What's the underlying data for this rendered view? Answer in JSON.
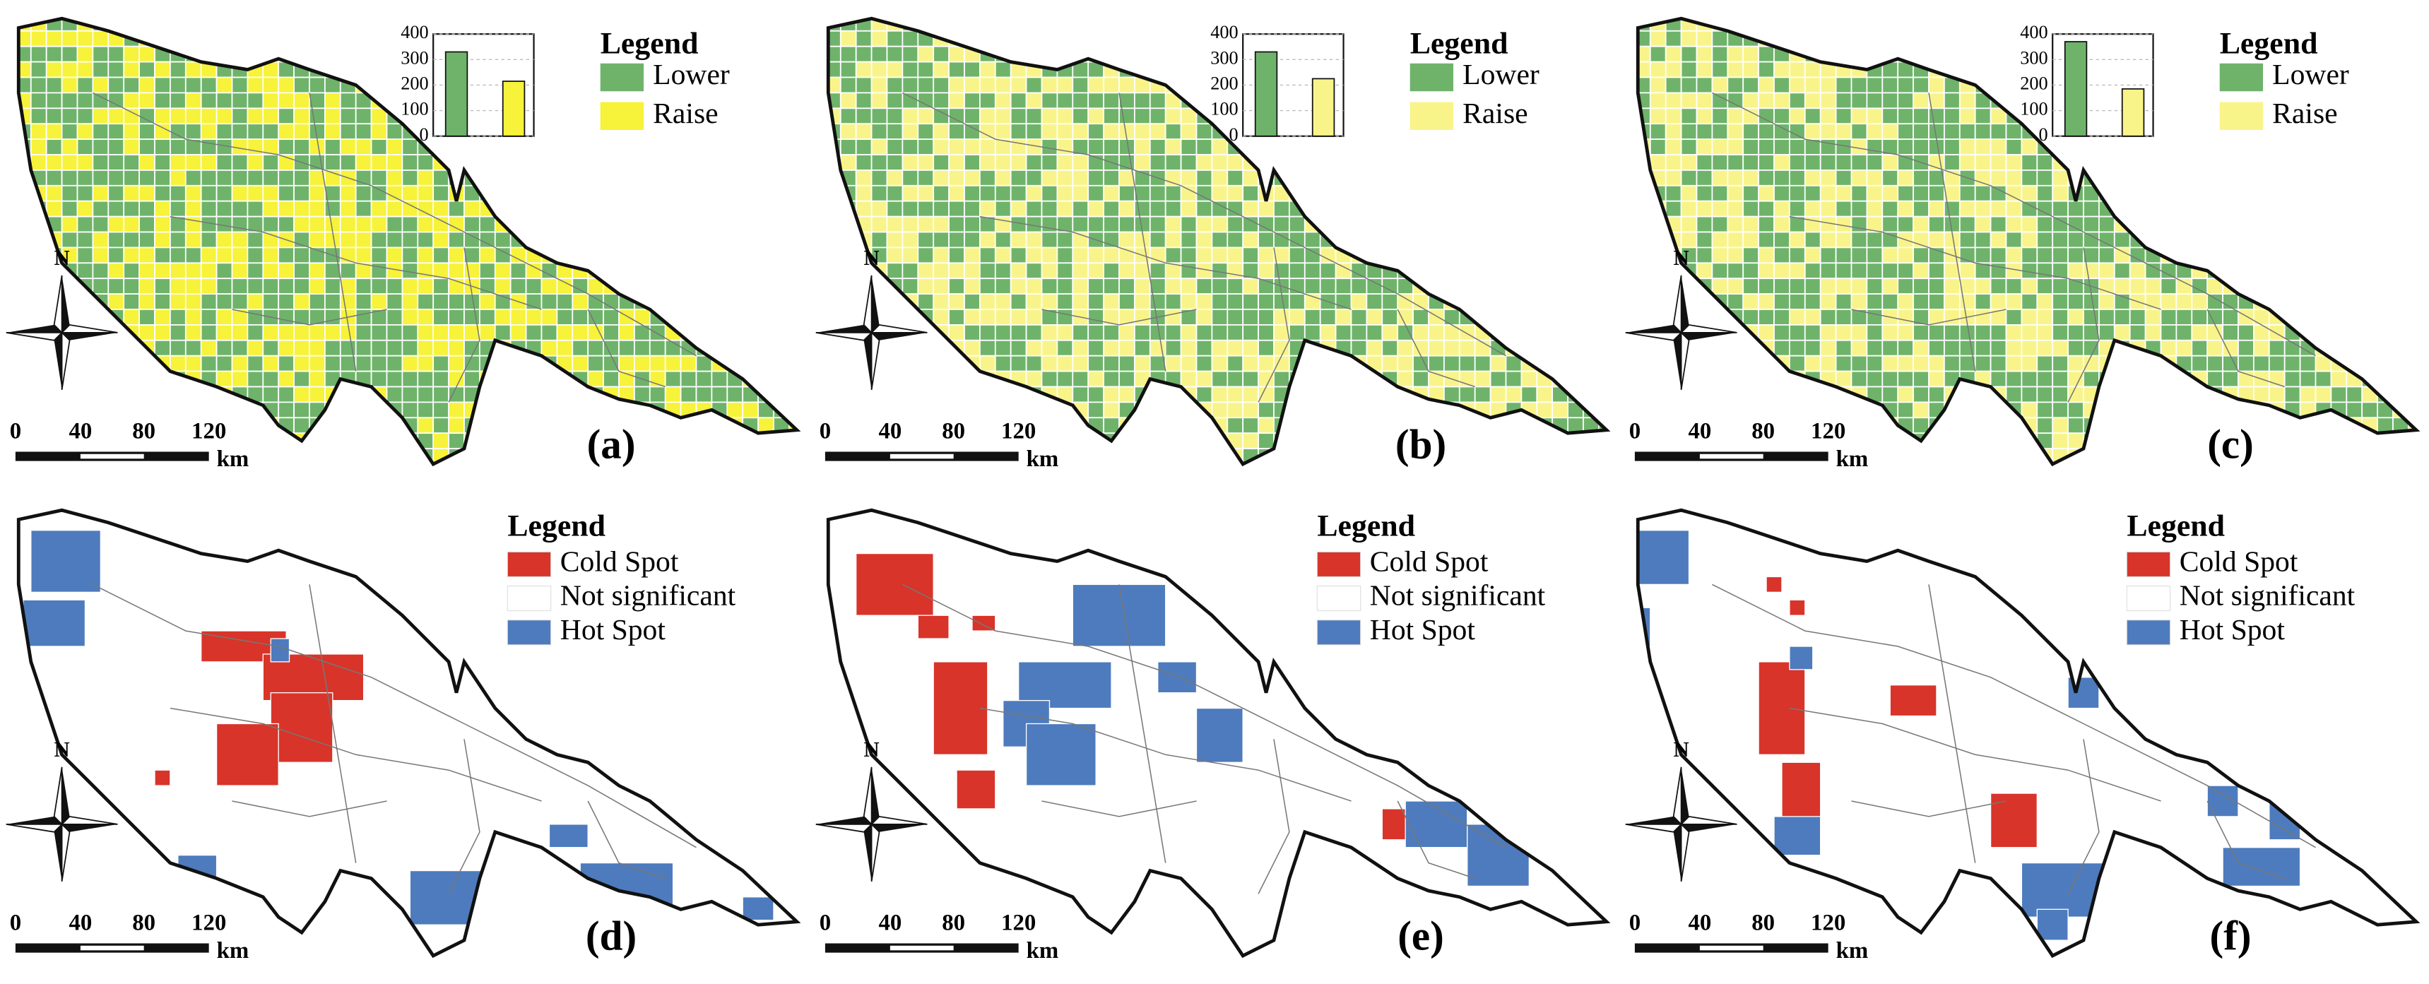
{
  "panels": [
    {
      "label": "(a)",
      "legend_title": "Legend",
      "legend_items": [
        {
          "name": "Lower",
          "color": "#6fb36b"
        },
        {
          "name": "Raise",
          "color": "#f7f23a"
        }
      ],
      "north": "N",
      "scale_labels": [
        "0",
        "40",
        "80",
        "120"
      ],
      "scale_unit": "km",
      "inset_chart": {
        "type": "bar",
        "values": [
          330,
          215
        ],
        "colors": [
          "#6fb36b",
          "#f7f23a"
        ],
        "ylim": [
          0,
          400
        ],
        "yticks": [
          0,
          100,
          200,
          300,
          400
        ]
      }
    },
    {
      "label": "(b)",
      "legend_title": "Legend",
      "legend_items": [
        {
          "name": "Lower",
          "color": "#6fb36b"
        },
        {
          "name": "Raise",
          "color": "#f9f48a"
        }
      ],
      "north": "N",
      "scale_labels": [
        "0",
        "40",
        "80",
        "120"
      ],
      "scale_unit": "km",
      "inset_chart": {
        "type": "bar",
        "values": [
          330,
          225
        ],
        "colors": [
          "#6fb36b",
          "#f9f48a"
        ],
        "ylim": [
          0,
          400
        ],
        "yticks": [
          0,
          100,
          200,
          300,
          400
        ]
      }
    },
    {
      "label": "(c)",
      "legend_title": "Legend",
      "legend_items": [
        {
          "name": "Lower",
          "color": "#6fb36b"
        },
        {
          "name": "Raise",
          "color": "#f9f48a"
        }
      ],
      "north": "N",
      "scale_labels": [
        "0",
        "40",
        "80",
        "120"
      ],
      "scale_unit": "km",
      "inset_chart": {
        "type": "bar",
        "values": [
          370,
          185
        ],
        "colors": [
          "#6fb36b",
          "#f9f48a"
        ],
        "ylim": [
          0,
          400
        ],
        "yticks": [
          0,
          100,
          200,
          300,
          400
        ]
      }
    },
    {
      "label": "(d)",
      "legend_title": "Legend",
      "legend_items": [
        {
          "name": "Cold Spot",
          "color": "#d8342a"
        },
        {
          "name": "Not significant",
          "color": "#ffffff"
        },
        {
          "name": "Hot Spot",
          "color": "#4e7bbd"
        }
      ],
      "north": "N",
      "scale_labels": [
        "0",
        "40",
        "80",
        "120"
      ],
      "scale_unit": "km"
    },
    {
      "label": "(e)",
      "legend_title": "Legend",
      "legend_items": [
        {
          "name": "Cold Spot",
          "color": "#d8342a"
        },
        {
          "name": "Not significant",
          "color": "#ffffff"
        },
        {
          "name": "Hot Spot",
          "color": "#4e7bbd"
        }
      ],
      "north": "N",
      "scale_labels": [
        "0",
        "40",
        "80",
        "120"
      ],
      "scale_unit": "km"
    },
    {
      "label": "(f)",
      "legend_title": "Legend",
      "legend_items": [
        {
          "name": "Cold Spot",
          "color": "#d8342a"
        },
        {
          "name": "Not significant",
          "color": "#ffffff"
        },
        {
          "name": "Hot Spot",
          "color": "#4e7bbd"
        }
      ],
      "north": "N",
      "scale_labels": [
        "0",
        "40",
        "80",
        "120"
      ],
      "scale_unit": "km"
    }
  ]
}
